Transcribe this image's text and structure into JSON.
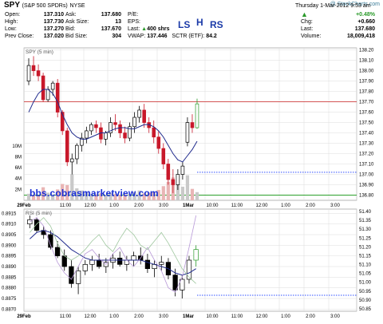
{
  "header": {
    "symbol": "SPY",
    "name": "(S&P 500 SPDRs)",
    "exchange": "NYSE",
    "watermark": "@ StockCharts.com",
    "datetime": "Thursday 1-Mar-2012 9:53 am",
    "open_label": "Open:",
    "open": "137.310",
    "high_label": "High:",
    "high": "137.730",
    "low_label": "Low:",
    "low": "137.270",
    "prevclose_label": "Prev Close:",
    "prevclose": "137.020",
    "ask_label": "Ask:",
    "ask": "137.680",
    "asksize_label": "Ask Size:",
    "asksize": "13",
    "bid_label": "Bid:",
    "bid": "137.670",
    "bidsize_label": "Bid Size:",
    "bidsize": "304",
    "pe_label": "P/E:",
    "eps_label": "EPS:",
    "last_label": "Last:",
    "lastsize": "400 shrs",
    "vwap_label": "VWAP:",
    "vwap": "137.446",
    "sctr_label": "SCTR (ETF):",
    "sctr": "84.2",
    "pct_change": "+0.48%",
    "chg_label": "Chg:",
    "chg": "+0.660",
    "last2_label": "Last:",
    "last": "137.680",
    "volume_label": "Volume:",
    "volume": "18,009,418",
    "ls": "LS",
    "h": "H",
    "rs": "RS",
    "up_color": "#2a9a2a"
  },
  "url_text": "bbs.cobrasmarketview.com",
  "chart_data": [
    {
      "type": "candlestick",
      "title": "SPY (5 min)",
      "y_ticks": [
        "138.20",
        "138.10",
        "138.00",
        "137.90",
        "137.80",
        "137.70",
        "137.60",
        "137.50",
        "137.40",
        "137.30",
        "137.20",
        "137.10",
        "137.00",
        "136.90",
        "136.80"
      ],
      "ylim": [
        136.75,
        138.22
      ],
      "volume_ticks": [
        "10M",
        "8M",
        "6M",
        "4M",
        "2M"
      ],
      "horizontal_lines": [
        {
          "value": 137.7,
          "color": "#d04040"
        },
        {
          "value": 137.02,
          "color": "#3050ff",
          "style": "dotted"
        },
        {
          "value": 136.8,
          "color": "#2ca02c"
        }
      ],
      "x_labels": [
        "29Feb",
        "11:00",
        "12:00",
        "1:00",
        "2:00",
        "3:00",
        "1Mar",
        "10:00",
        "11:00",
        "12:00",
        "1:00",
        "2:00",
        "3:00"
      ],
      "series": [
        {
          "kind": "ohlc",
          "values": [
            [
              137.9,
              138.12,
              137.86,
              138.05
            ],
            [
              138.05,
              138.14,
              137.95,
              138.0
            ],
            [
              138.0,
              138.06,
              137.9,
              137.95
            ],
            [
              137.95,
              137.98,
              137.7,
              137.72
            ],
            [
              137.72,
              137.85,
              137.7,
              137.82
            ],
            [
              137.82,
              137.9,
              137.76,
              137.88
            ],
            [
              137.88,
              137.92,
              137.55,
              137.6
            ],
            [
              137.6,
              137.62,
              137.38,
              137.42
            ],
            [
              137.42,
              137.45,
              137.08,
              137.12
            ],
            [
              137.12,
              137.2,
              137.0,
              137.15
            ],
            [
              137.15,
              137.3,
              137.1,
              137.28
            ],
            [
              137.28,
              137.4,
              137.22,
              137.35
            ],
            [
              137.35,
              137.46,
              137.3,
              137.42
            ],
            [
              137.42,
              137.5,
              137.38,
              137.48
            ],
            [
              137.48,
              137.52,
              137.4,
              137.45
            ],
            [
              137.45,
              137.5,
              137.3,
              137.34
            ],
            [
              137.34,
              137.42,
              137.28,
              137.4
            ],
            [
              137.4,
              137.55,
              137.36,
              137.5
            ],
            [
              137.5,
              137.58,
              137.42,
              137.48
            ],
            [
              137.48,
              137.52,
              137.35,
              137.4
            ],
            [
              137.4,
              137.46,
              137.3,
              137.35
            ],
            [
              137.35,
              137.5,
              137.32,
              137.46
            ],
            [
              137.46,
              137.6,
              137.4,
              137.55
            ],
            [
              137.55,
              137.66,
              137.5,
              137.62
            ],
            [
              137.62,
              137.68,
              137.45,
              137.5
            ],
            [
              137.5,
              137.55,
              137.4,
              137.45
            ],
            [
              137.45,
              137.52,
              137.3,
              137.36
            ],
            [
              137.36,
              137.42,
              137.2,
              137.25
            ],
            [
              137.25,
              137.3,
              137.05,
              137.1
            ],
            [
              137.1,
              137.15,
              136.9,
              136.95
            ],
            [
              136.95,
              137.05,
              136.82,
              136.9
            ],
            [
              136.9,
              137.05,
              136.85,
              137.0
            ],
            [
              137.0,
              137.12,
              136.95,
              137.08
            ],
            [
              137.31,
              137.55,
              137.27,
              137.5
            ],
            [
              137.5,
              137.58,
              137.4,
              137.45
            ],
            [
              137.45,
              137.73,
              137.44,
              137.68
            ]
          ]
        },
        {
          "kind": "sma",
          "color": "#1f2a8c",
          "values": [
            137.6,
            137.7,
            137.78,
            137.82,
            137.82,
            137.78,
            137.7,
            137.58,
            137.48,
            137.4,
            137.36,
            137.34,
            137.34,
            137.36,
            137.38,
            137.4,
            137.4,
            137.42,
            137.44,
            137.45,
            137.45,
            137.44,
            137.44,
            137.46,
            137.48,
            137.48,
            137.46,
            137.42,
            137.36,
            137.28,
            137.2,
            137.14,
            137.12,
            137.18,
            137.24,
            137.32
          ]
        }
      ],
      "volume": [
        1.2,
        1.0,
        0.9,
        2.4,
        1.4,
        1.1,
        2.0,
        3.0,
        2.8,
        4.8,
        2.2,
        1.8,
        1.5,
        1.2,
        1.1,
        1.3,
        1.0,
        1.4,
        1.2,
        1.0,
        1.1,
        1.2,
        1.5,
        1.8,
        1.3,
        1.4,
        1.6,
        1.9,
        2.6,
        3.4,
        4.2,
        3.8,
        2.5,
        4.6,
        2.1,
        1.5
      ]
    },
    {
      "type": "line",
      "title": "RSI (5 min)",
      "y_ticks_left": [
        "0.8915",
        "0.8910",
        "0.8905",
        "0.8900",
        "0.8895",
        "0.8890",
        "0.8885",
        "0.8880",
        "0.8875",
        "0.8870"
      ],
      "y_ticks_right": [
        "51.40",
        "51.35",
        "51.30",
        "51.25",
        "51.20",
        "51.15",
        "51.10",
        "51.05",
        "51.00",
        "50.95",
        "50.90",
        "50.85"
      ],
      "ylim": [
        0.8869,
        0.8917
      ],
      "horizontal_lines": [
        {
          "value": 0.88765,
          "color": "#3050ff",
          "style": "dotted"
        }
      ],
      "x_labels": [
        "29Feb",
        "11:00",
        "12:00",
        "1:00",
        "2:00",
        "3:00",
        "1Mar",
        "10:00",
        "11:00",
        "12:00",
        "1:00",
        "2:00",
        "3:00"
      ],
      "series": [
        {
          "kind": "ohlc",
          "values": [
            [
              0.891,
              0.8914,
              0.8908,
              0.8912
            ],
            [
              0.8912,
              0.8913,
              0.8906,
              0.8907
            ],
            [
              0.8907,
              0.8909,
              0.8903,
              0.8905
            ],
            [
              0.8905,
              0.8907,
              0.8898,
              0.8899
            ],
            [
              0.8899,
              0.8902,
              0.8894,
              0.8895
            ],
            [
              0.8895,
              0.8898,
              0.8888,
              0.889
            ],
            [
              0.889,
              0.8893,
              0.888,
              0.8882
            ],
            [
              0.8882,
              0.889,
              0.8877,
              0.8888
            ],
            [
              0.8888,
              0.8893,
              0.8886,
              0.8891
            ],
            [
              0.8891,
              0.8895,
              0.8888,
              0.8893
            ],
            [
              0.8893,
              0.8896,
              0.8889,
              0.889
            ],
            [
              0.889,
              0.8894,
              0.8887,
              0.8892
            ],
            [
              0.8892,
              0.8896,
              0.8889,
              0.8894
            ],
            [
              0.8894,
              0.8897,
              0.889,
              0.8891
            ],
            [
              0.8891,
              0.8895,
              0.8888,
              0.8893
            ],
            [
              0.8893,
              0.8897,
              0.889,
              0.8895
            ],
            [
              0.8895,
              0.8899,
              0.8891,
              0.8893
            ],
            [
              0.8893,
              0.8896,
              0.8887,
              0.8889
            ],
            [
              0.8889,
              0.8893,
              0.8885,
              0.8891
            ],
            [
              0.8891,
              0.8895,
              0.8888,
              0.8892
            ],
            [
              0.8892,
              0.8894,
              0.8884,
              0.8886
            ],
            [
              0.8886,
              0.8889,
              0.8876,
              0.8879
            ],
            [
              0.8879,
              0.8886,
              0.8875,
              0.8884
            ],
            [
              0.8884,
              0.8895,
              0.8882,
              0.8893
            ],
            [
              0.8893,
              0.89,
              0.889,
              0.8898
            ]
          ]
        },
        {
          "kind": "sma",
          "color": "#1f2a8c",
          "values": [
            0.8903,
            0.8906,
            0.8907,
            0.8906,
            0.8904,
            0.8901,
            0.8898,
            0.8896,
            0.8894,
            0.8893,
            0.8893,
            0.8893,
            0.8893,
            0.8893,
            0.8893,
            0.8893,
            0.8893,
            0.8892,
            0.8891,
            0.889,
            0.8889,
            0.8887,
            0.8886,
            0.8887,
            0.8889
          ]
        },
        {
          "kind": "line",
          "color": "#b99ad8",
          "values": [
            0.8911,
            0.8913,
            0.8909,
            0.89,
            0.8892,
            0.8887,
            0.8884,
            0.889,
            0.8896,
            0.8898,
            0.8894,
            0.8891,
            0.8896,
            0.8899,
            0.8893,
            0.889,
            0.8894,
            0.8899,
            0.8893,
            0.8888,
            0.888,
            0.8878,
            0.8885,
            0.8899,
            0.8914
          ]
        },
        {
          "kind": "line",
          "color": "#9fc79f",
          "values": [
            0.8906,
            0.891,
            0.8913,
            0.8909,
            0.8901,
            0.8895,
            0.8893,
            0.8895,
            0.8898,
            0.8902,
            0.8905,
            0.89,
            0.8897,
            0.8903,
            0.8908,
            0.8905,
            0.89,
            0.8898,
            0.8902,
            0.8906,
            0.8901,
            0.8895,
            0.8889,
            0.8885,
            0.8882
          ]
        }
      ]
    }
  ]
}
